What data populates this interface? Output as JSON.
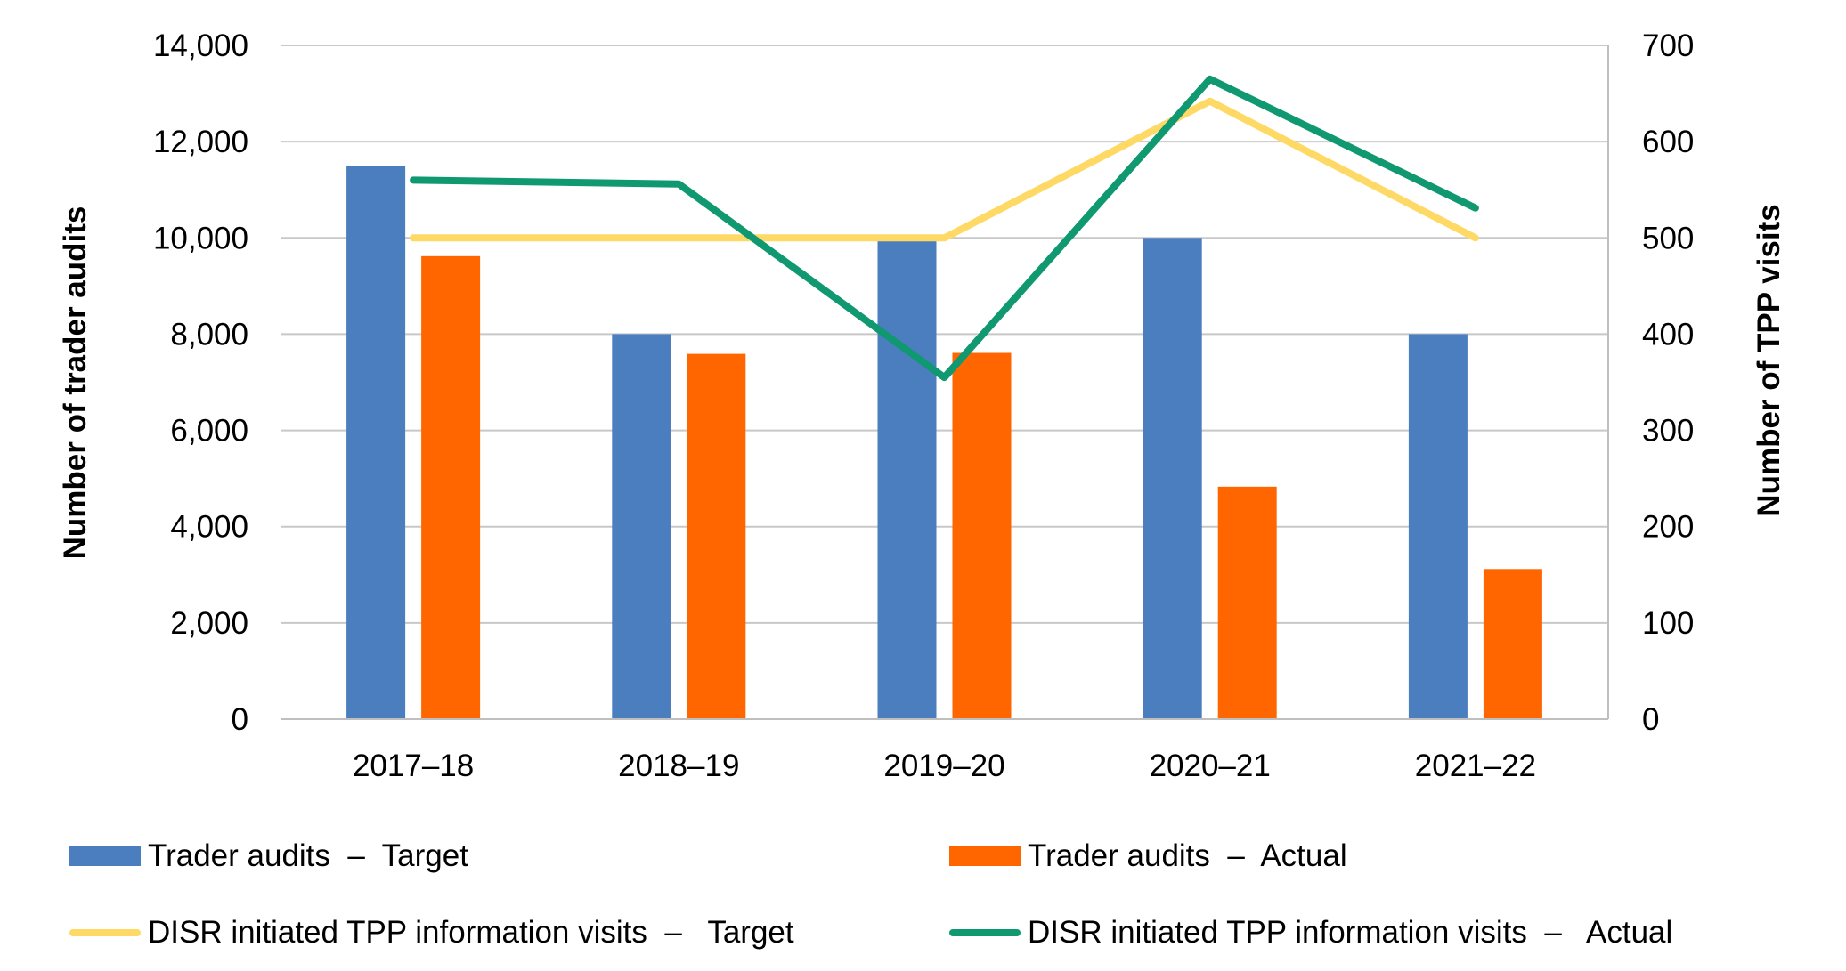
{
  "chart_data": {
    "type": "bar",
    "categories": [
      "2017–18",
      "2018–19",
      "2019–20",
      "2020–21",
      "2021–22"
    ],
    "y_left": {
      "label": "Number of trader audits",
      "lim": [
        0,
        14000
      ],
      "step": 2000,
      "ticks": [
        "0",
        "2,000",
        "4,000",
        "6,000",
        "8,000",
        "10,000",
        "12,000",
        "14,000"
      ]
    },
    "y_right": {
      "label": "Number of TPP visits",
      "lim": [
        0,
        700
      ],
      "step": 100,
      "ticks": [
        "0",
        "100",
        "200",
        "300",
        "400",
        "500",
        "600",
        "700"
      ]
    },
    "grid": true,
    "legend_position": "bottom",
    "series": [
      {
        "name": "Trader audits  –  Target",
        "kind": "bar",
        "axis": "left",
        "color": "#4A7EBF",
        "values": [
          11500,
          8000,
          10000,
          10000,
          8000
        ]
      },
      {
        "name": "Trader audits  –  Actual",
        "kind": "bar",
        "axis": "left",
        "color": "#FF6600",
        "values": [
          9620,
          7590,
          7610,
          4830,
          3120
        ]
      },
      {
        "name": "DISR initiated TPP information visits  –   Target",
        "kind": "line",
        "axis": "right",
        "color": "#FFD966",
        "values": [
          500,
          500,
          500,
          642,
          500
        ]
      },
      {
        "name": "DISR initiated TPP information visits  –   Actual",
        "kind": "line",
        "axis": "right",
        "color": "#109970",
        "values": [
          560,
          556,
          355,
          665,
          531
        ]
      }
    ]
  }
}
